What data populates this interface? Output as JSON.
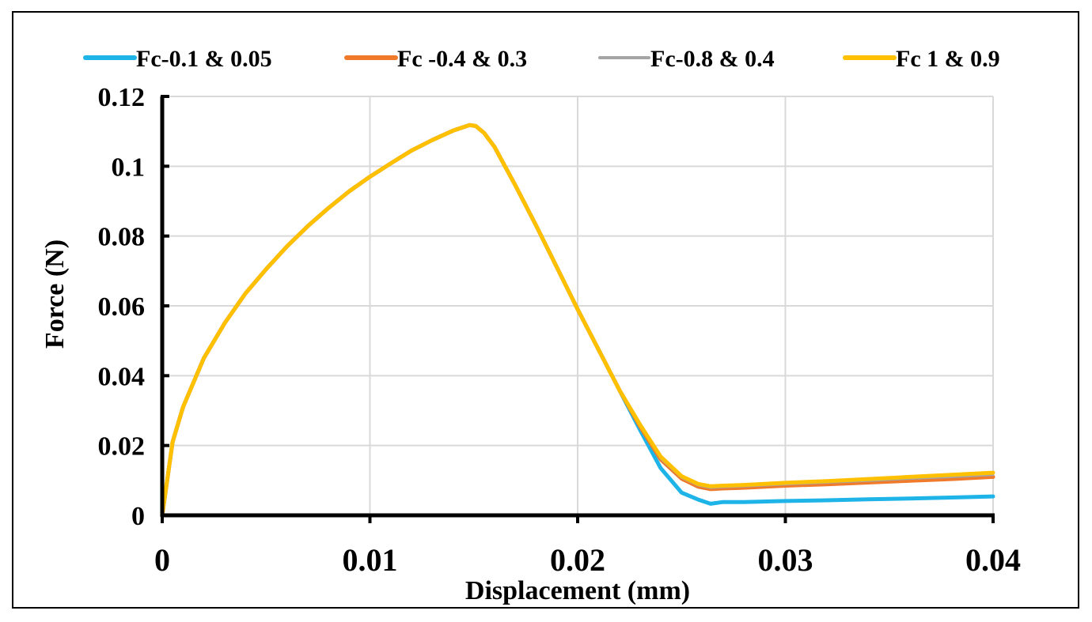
{
  "chart_data": {
    "type": "line",
    "title": "",
    "xlabel": "Displacement (mm)",
    "ylabel": "Force (N)",
    "xlim": [
      0,
      0.04
    ],
    "ylim": [
      0,
      0.12
    ],
    "xticks": [
      0,
      0.01,
      0.02,
      0.03,
      0.04
    ],
    "xtick_labels": [
      "0",
      "0.01",
      "0.02",
      "0.03",
      "0.04"
    ],
    "yticks": [
      0,
      0.02,
      0.04,
      0.06,
      0.08,
      0.1,
      0.12
    ],
    "ytick_labels": [
      "0",
      "0.02",
      "0.04",
      "0.06",
      "0.08",
      "0.1",
      "0.12"
    ],
    "grid": true,
    "legend_position": "top",
    "series": [
      {
        "name": "Fc-0.1 & 0.05",
        "color": "#1EB4E8",
        "x": [
          0,
          0.0005,
          0.001,
          0.002,
          0.003,
          0.004,
          0.005,
          0.006,
          0.007,
          0.008,
          0.009,
          0.01,
          0.011,
          0.012,
          0.013,
          0.014,
          0.0148,
          0.0151,
          0.0155,
          0.016,
          0.017,
          0.018,
          0.019,
          0.02,
          0.021,
          0.022,
          0.023,
          0.024,
          0.025,
          0.0258,
          0.0264,
          0.027,
          0.028,
          0.03,
          0.032,
          0.034,
          0.036,
          0.038,
          0.04
        ],
        "values": [
          0,
          0.021,
          0.031,
          0.045,
          0.055,
          0.0635,
          0.0705,
          0.077,
          0.0828,
          0.088,
          0.0928,
          0.097,
          0.1008,
          0.1045,
          0.1075,
          0.1102,
          0.1118,
          0.1115,
          0.1095,
          0.1055,
          0.0945,
          0.083,
          0.071,
          0.059,
          0.0475,
          0.036,
          0.0245,
          0.0135,
          0.0065,
          0.0045,
          0.0033,
          0.0038,
          0.0038,
          0.0041,
          0.0043,
          0.0046,
          0.0048,
          0.0051,
          0.0054
        ]
      },
      {
        "name": "Fc -0.4 & 0.3",
        "color": "#F07A2A",
        "x": [
          0,
          0.0005,
          0.001,
          0.002,
          0.003,
          0.004,
          0.005,
          0.006,
          0.007,
          0.008,
          0.009,
          0.01,
          0.011,
          0.012,
          0.013,
          0.014,
          0.0148,
          0.0151,
          0.0155,
          0.016,
          0.017,
          0.018,
          0.019,
          0.02,
          0.021,
          0.022,
          0.023,
          0.024,
          0.025,
          0.0258,
          0.0264,
          0.027,
          0.028,
          0.03,
          0.032,
          0.034,
          0.036,
          0.038,
          0.04
        ],
        "values": [
          0,
          0.021,
          0.031,
          0.045,
          0.055,
          0.0635,
          0.0705,
          0.077,
          0.0828,
          0.088,
          0.0928,
          0.097,
          0.1008,
          0.1045,
          0.1075,
          0.1102,
          0.1118,
          0.1115,
          0.1095,
          0.1055,
          0.0945,
          0.083,
          0.071,
          0.059,
          0.0475,
          0.036,
          0.0255,
          0.016,
          0.0105,
          0.0082,
          0.0075,
          0.0077,
          0.0079,
          0.0085,
          0.0089,
          0.0094,
          0.0099,
          0.0104,
          0.011
        ]
      },
      {
        "name": "Fc-0.8 & 0.4",
        "color": "#A5A5A5",
        "x": [
          0,
          0.0005,
          0.001,
          0.002,
          0.003,
          0.004,
          0.005,
          0.006,
          0.007,
          0.008,
          0.009,
          0.01,
          0.011,
          0.012,
          0.013,
          0.014,
          0.0148,
          0.0151,
          0.0155,
          0.016,
          0.017,
          0.018,
          0.019,
          0.02,
          0.021,
          0.022,
          0.023,
          0.024,
          0.025,
          0.0258,
          0.0264,
          0.027,
          0.028,
          0.03,
          0.032,
          0.034,
          0.036,
          0.038,
          0.04
        ],
        "values": [
          0,
          0.021,
          0.031,
          0.045,
          0.055,
          0.0635,
          0.0705,
          0.077,
          0.0828,
          0.088,
          0.0928,
          0.097,
          0.1008,
          0.1045,
          0.1075,
          0.1102,
          0.1118,
          0.1115,
          0.1095,
          0.1055,
          0.0945,
          0.083,
          0.071,
          0.059,
          0.0475,
          0.036,
          0.0257,
          0.0163,
          0.0108,
          0.0086,
          0.0079,
          0.0081,
          0.0083,
          0.0089,
          0.0094,
          0.0099,
          0.0105,
          0.011,
          0.0116
        ]
      },
      {
        "name": "Fc 1 & 0.9",
        "color": "#FFC000",
        "x": [
          0,
          0.0005,
          0.001,
          0.002,
          0.003,
          0.004,
          0.005,
          0.006,
          0.007,
          0.008,
          0.009,
          0.01,
          0.011,
          0.012,
          0.013,
          0.014,
          0.0148,
          0.0151,
          0.0155,
          0.016,
          0.017,
          0.018,
          0.019,
          0.02,
          0.021,
          0.022,
          0.023,
          0.024,
          0.025,
          0.0258,
          0.0264,
          0.027,
          0.028,
          0.03,
          0.032,
          0.034,
          0.036,
          0.038,
          0.04
        ],
        "values": [
          0,
          0.021,
          0.031,
          0.045,
          0.055,
          0.0635,
          0.0705,
          0.077,
          0.0828,
          0.088,
          0.0928,
          0.097,
          0.1008,
          0.1045,
          0.1075,
          0.1102,
          0.1118,
          0.1115,
          0.1095,
          0.1055,
          0.0945,
          0.083,
          0.071,
          0.059,
          0.0475,
          0.036,
          0.026,
          0.0168,
          0.0112,
          0.009,
          0.0083,
          0.0085,
          0.0087,
          0.0093,
          0.0098,
          0.0104,
          0.011,
          0.0116,
          0.0122
        ]
      }
    ]
  }
}
